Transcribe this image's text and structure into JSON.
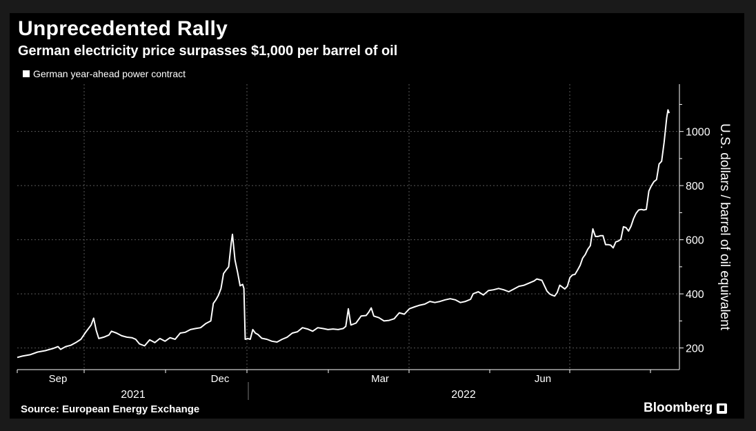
{
  "header": {
    "title": "Unprecedented Rally",
    "subtitle": "German electricity price surpasses $1,000 per barrel of oil"
  },
  "footer": {
    "source": "Source: European Energy Exchange",
    "brand": "Bloomberg"
  },
  "colors": {
    "background": "#000000",
    "line": "#ffffff",
    "grid": "#666666",
    "text": "#ffffff"
  },
  "chart_data": {
    "type": "line",
    "title": "Unprecedented Rally",
    "subtitle": "German electricity price surpasses $1,000 per barrel of oil",
    "legend": [
      "German year-ahead power contract"
    ],
    "legend_position": "top-left",
    "ylabel": "U.S. dollars / barrel of oil equivalent",
    "yticks": [
      200,
      400,
      600,
      800,
      1000
    ],
    "ylim": [
      120,
      1175
    ],
    "y_axis_side": "right",
    "x_tick_labels": [
      "Sep",
      "Dec",
      "Mar",
      "Jun"
    ],
    "x_year_labels": [
      "2021",
      "2022"
    ],
    "grid": true,
    "series": [
      {
        "name": "German year-ahead power contract",
        "points": [
          [
            0,
            165
          ],
          [
            4,
            170
          ],
          [
            10,
            175
          ],
          [
            16,
            185
          ],
          [
            22,
            190
          ],
          [
            28,
            198
          ],
          [
            32,
            205
          ],
          [
            34,
            195
          ],
          [
            38,
            205
          ],
          [
            42,
            210
          ],
          [
            46,
            220
          ],
          [
            50,
            232
          ],
          [
            54,
            260
          ],
          [
            58,
            285
          ],
          [
            60,
            310
          ],
          [
            62,
            265
          ],
          [
            64,
            235
          ],
          [
            68,
            240
          ],
          [
            72,
            248
          ],
          [
            74,
            262
          ],
          [
            78,
            255
          ],
          [
            82,
            245
          ],
          [
            86,
            240
          ],
          [
            90,
            238
          ],
          [
            93,
            232
          ],
          [
            96,
            215
          ],
          [
            100,
            208
          ],
          [
            104,
            230
          ],
          [
            108,
            220
          ],
          [
            112,
            235
          ],
          [
            116,
            225
          ],
          [
            120,
            238
          ],
          [
            124,
            232
          ],
          [
            128,
            255
          ],
          [
            132,
            258
          ],
          [
            136,
            268
          ],
          [
            140,
            272
          ],
          [
            144,
            275
          ],
          [
            148,
            290
          ],
          [
            152,
            300
          ],
          [
            154,
            365
          ],
          [
            156,
            378
          ],
          [
            158,
            395
          ],
          [
            160,
            420
          ],
          [
            162,
            475
          ],
          [
            164,
            488
          ],
          [
            166,
            500
          ],
          [
            168,
            588
          ],
          [
            169,
            620
          ],
          [
            171,
            525
          ],
          [
            173,
            480
          ],
          [
            175,
            430
          ],
          [
            177,
            435
          ],
          [
            178,
            420
          ],
          [
            179,
            232
          ],
          [
            181,
            235
          ],
          [
            183,
            232
          ],
          [
            185,
            268
          ],
          [
            187,
            255
          ],
          [
            189,
            250
          ],
          [
            192,
            236
          ],
          [
            196,
            232
          ],
          [
            200,
            225
          ],
          [
            204,
            222
          ],
          [
            208,
            232
          ],
          [
            212,
            240
          ],
          [
            216,
            255
          ],
          [
            220,
            260
          ],
          [
            224,
            275
          ],
          [
            228,
            270
          ],
          [
            232,
            262
          ],
          [
            236,
            275
          ],
          [
            240,
            272
          ],
          [
            244,
            268
          ],
          [
            248,
            270
          ],
          [
            252,
            268
          ],
          [
            256,
            272
          ],
          [
            258,
            280
          ],
          [
            260,
            345
          ],
          [
            262,
            285
          ],
          [
            266,
            292
          ],
          [
            270,
            318
          ],
          [
            274,
            320
          ],
          [
            276,
            332
          ],
          [
            278,
            348
          ],
          [
            280,
            318
          ],
          [
            284,
            312
          ],
          [
            288,
            300
          ],
          [
            292,
            302
          ],
          [
            296,
            308
          ],
          [
            300,
            330
          ],
          [
            304,
            325
          ],
          [
            308,
            345
          ],
          [
            312,
            352
          ],
          [
            316,
            358
          ],
          [
            320,
            362
          ],
          [
            324,
            372
          ],
          [
            328,
            368
          ],
          [
            332,
            372
          ],
          [
            336,
            378
          ],
          [
            340,
            382
          ],
          [
            344,
            378
          ],
          [
            348,
            368
          ],
          [
            352,
            372
          ],
          [
            356,
            380
          ],
          [
            358,
            400
          ],
          [
            362,
            408
          ],
          [
            366,
            396
          ],
          [
            370,
            412
          ],
          [
            374,
            415
          ],
          [
            378,
            420
          ],
          [
            382,
            415
          ],
          [
            386,
            408
          ],
          [
            390,
            418
          ],
          [
            394,
            428
          ],
          [
            398,
            432
          ],
          [
            402,
            440
          ],
          [
            406,
            448
          ],
          [
            408,
            455
          ],
          [
            412,
            450
          ],
          [
            414,
            430
          ],
          [
            416,
            410
          ],
          [
            418,
            400
          ],
          [
            420,
            395
          ],
          [
            422,
            392
          ],
          [
            424,
            405
          ],
          [
            426,
            432
          ],
          [
            428,
            425
          ],
          [
            430,
            418
          ],
          [
            432,
            428
          ],
          [
            434,
            460
          ],
          [
            436,
            470
          ],
          [
            438,
            472
          ],
          [
            440,
            488
          ],
          [
            442,
            505
          ],
          [
            444,
            532
          ],
          [
            446,
            545
          ],
          [
            448,
            565
          ],
          [
            450,
            578
          ],
          [
            452,
            640
          ],
          [
            454,
            612
          ],
          [
            456,
            612
          ],
          [
            458,
            615
          ],
          [
            460,
            615
          ],
          [
            462,
            582
          ],
          [
            464,
            582
          ],
          [
            466,
            580
          ],
          [
            468,
            570
          ],
          [
            470,
            592
          ],
          [
            472,
            595
          ],
          [
            474,
            602
          ],
          [
            476,
            648
          ],
          [
            478,
            645
          ],
          [
            480,
            632
          ],
          [
            482,
            650
          ],
          [
            484,
            678
          ],
          [
            486,
            698
          ],
          [
            488,
            710
          ],
          [
            490,
            712
          ],
          [
            492,
            710
          ],
          [
            494,
            712
          ],
          [
            496,
            780
          ],
          [
            498,
            800
          ],
          [
            500,
            815
          ],
          [
            502,
            822
          ],
          [
            504,
            880
          ],
          [
            506,
            890
          ],
          [
            508,
            960
          ],
          [
            510,
            1050
          ],
          [
            511,
            1080
          ],
          [
            512,
            1068
          ]
        ]
      }
    ]
  }
}
